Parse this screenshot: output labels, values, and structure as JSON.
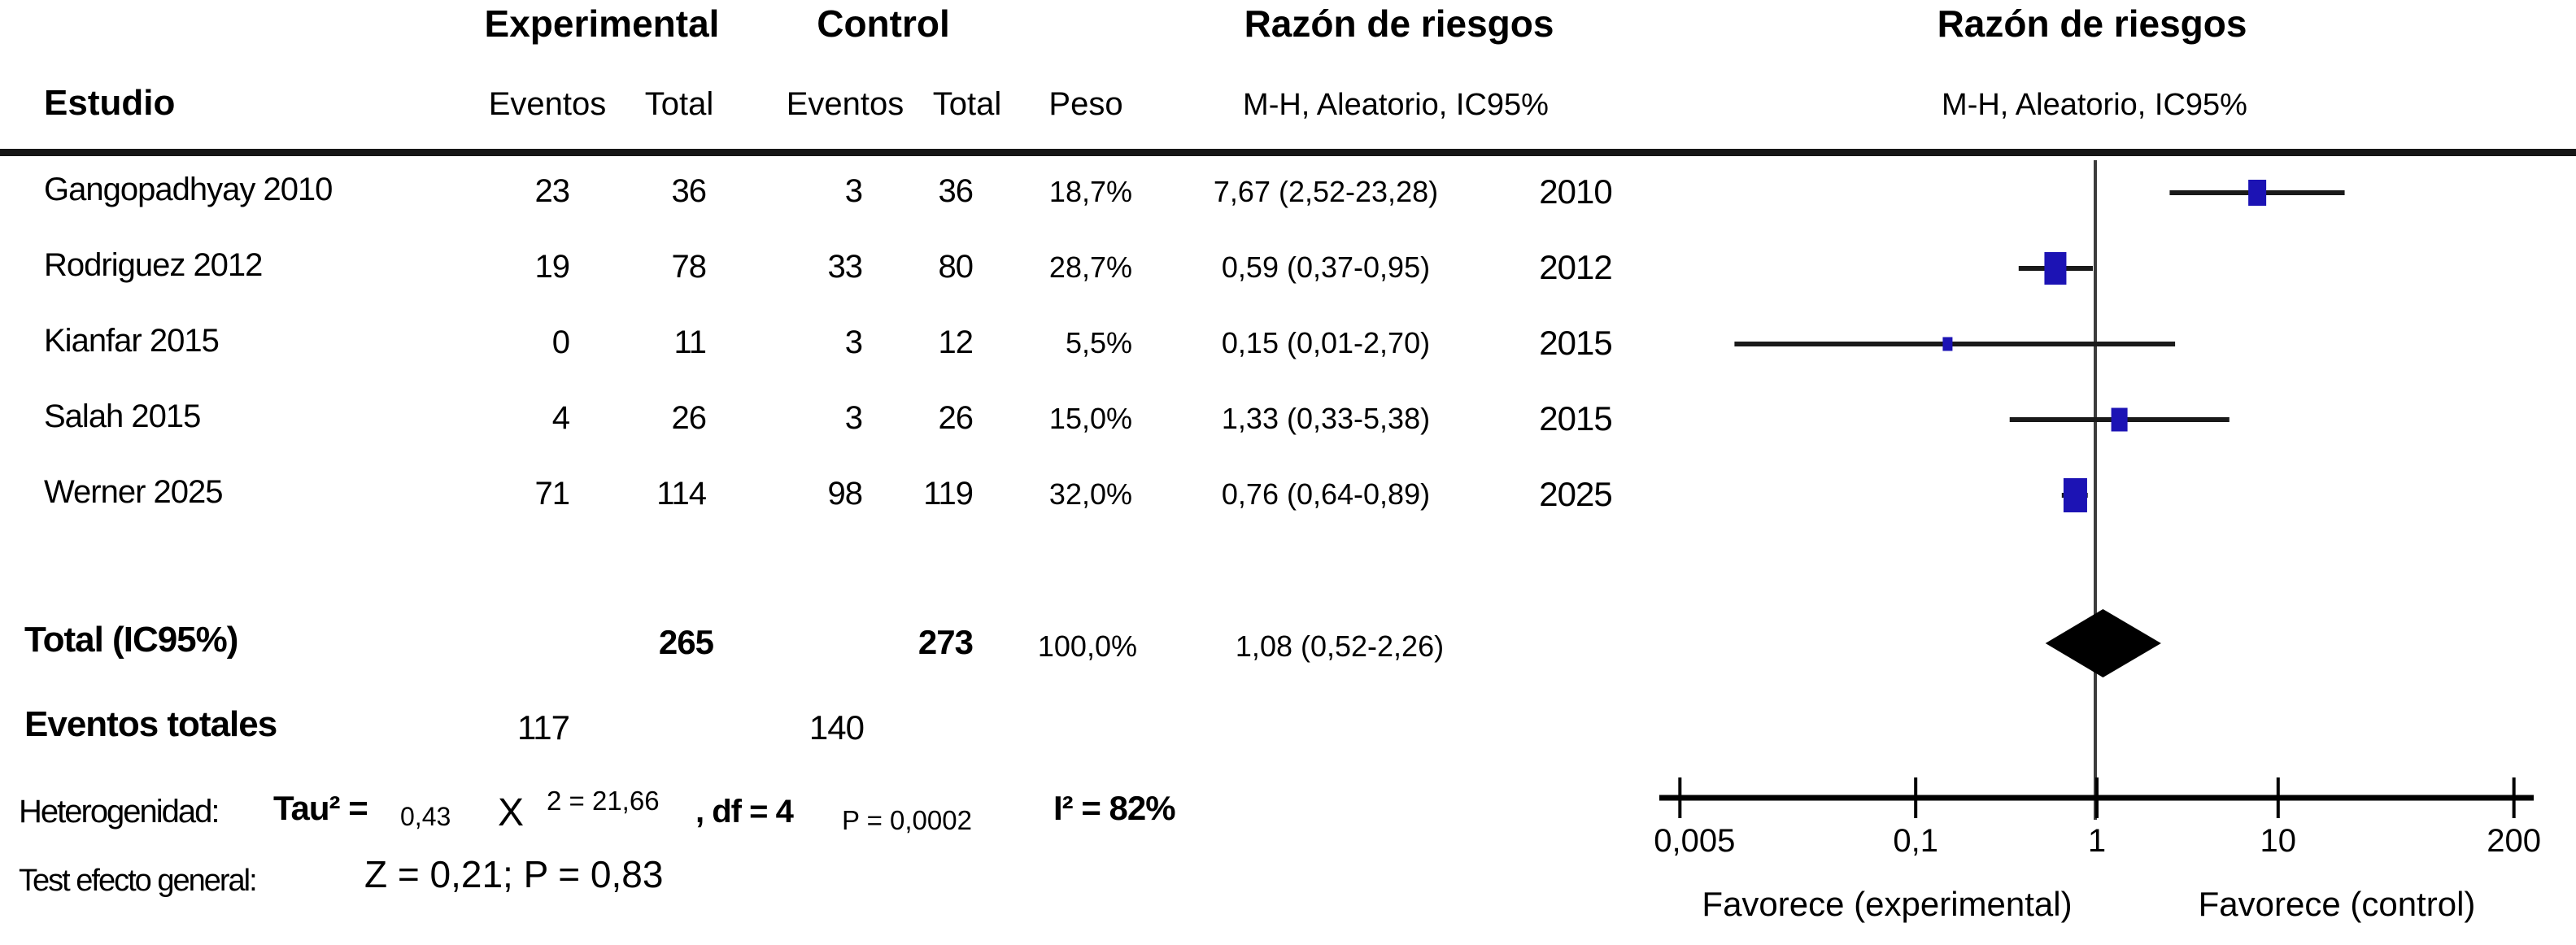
{
  "header": {
    "col_study": "Estudio",
    "col_experimental": "Experimental",
    "col_control": "Control",
    "col_events": "Eventos",
    "col_total": "Total",
    "col_weight": "Peso",
    "col_rr_text": "Razón de riesgos",
    "col_rr_plot": "Razón de riesgos",
    "sub_mh": "M-H, Aleatorio, IC95%"
  },
  "studies": [
    {
      "name": "Gangopadhyay 2010",
      "exp_events": "23",
      "exp_total": "36",
      "ctrl_events": "3",
      "ctrl_total": "36",
      "weight": "18,7%",
      "rr_ci": "7,67 (2,52-23,28)",
      "year": "2010"
    },
    {
      "name": "Rodriguez 2012",
      "exp_events": "19",
      "exp_total": "78",
      "ctrl_events": "33",
      "ctrl_total": "80",
      "weight": "28,7%",
      "rr_ci": "0,59 (0,37-0,95)",
      "year": "2012"
    },
    {
      "name": "Kianfar 2015",
      "exp_events": "0",
      "exp_total": "11",
      "ctrl_events": "3",
      "ctrl_total": "12",
      "weight": "5,5%",
      "rr_ci": "0,15 (0,01-2,70)",
      "year": "2015"
    },
    {
      "name": "Salah 2015",
      "exp_events": "4",
      "exp_total": "26",
      "ctrl_events": "3",
      "ctrl_total": "26",
      "weight": "15,0%",
      "rr_ci": "1,33 (0,33-5,38)",
      "year": "2015"
    },
    {
      "name": "Werner 2025",
      "exp_events": "71",
      "exp_total": "114",
      "ctrl_events": "98",
      "ctrl_total": "119",
      "weight": "32,0%",
      "rr_ci": "0,76 (0,64-0,89)",
      "year": "2025"
    }
  ],
  "totals": {
    "label": "Total (IC95%)",
    "exp_total": "265",
    "ctrl_total": "273",
    "weight": "100,0%",
    "rr_ci": "1,08 (0,52-2,26)",
    "events_label": "Eventos totales",
    "exp_events": "117",
    "ctrl_events": "140"
  },
  "heterogeneity": {
    "label": "Heterogenidad:",
    "tau": "Tau² =",
    "tau_val": "0,43",
    "chi_base": "X",
    "chi_sup": "2 = 21,66",
    "df": ", df = 4",
    "p": "P = 0,0002",
    "i2": "I² = 82%"
  },
  "overall": {
    "label": "Test efecto general:",
    "value": "Z = 0,21; P = 0,83"
  },
  "axis": {
    "tick_labels": [
      "0,005",
      "0,1",
      "1",
      "10",
      "200"
    ],
    "favor_left": "Favorece (experimental)",
    "favor_right": "Favorece (control)"
  },
  "colors": {
    "marker_blue": "#1c13b4",
    "ci_line": "#1a1a1a",
    "vline_gray": "#3c3c3c",
    "axis_black": "#000000",
    "diamond_black": "#000000"
  },
  "chart_data": {
    "type": "forest",
    "scale": "log10",
    "effect_measure": "Razón de riesgos (M-H, Aleatorio, IC95%)",
    "axis_ticks": [
      0.005,
      0.1,
      1,
      10,
      200
    ],
    "xlim": [
      0.005,
      200
    ],
    "null_line": 1,
    "studies": [
      {
        "name": "Gangopadhyay 2010",
        "rr": 7.67,
        "ci_low": 2.52,
        "ci_high": 23.28,
        "weight_pct": 18.7,
        "year": 2010
      },
      {
        "name": "Rodriguez 2012",
        "rr": 0.59,
        "ci_low": 0.37,
        "ci_high": 0.95,
        "weight_pct": 28.7,
        "year": 2012
      },
      {
        "name": "Kianfar 2015",
        "rr": 0.15,
        "ci_low": 0.01,
        "ci_high": 2.7,
        "weight_pct": 5.5,
        "year": 2015
      },
      {
        "name": "Salah 2015",
        "rr": 1.33,
        "ci_low": 0.33,
        "ci_high": 5.38,
        "weight_pct": 15.0,
        "year": 2015
      },
      {
        "name": "Werner 2025",
        "rr": 0.76,
        "ci_low": 0.64,
        "ci_high": 0.89,
        "weight_pct": 32.0,
        "year": 2025
      }
    ],
    "total": {
      "rr": 1.08,
      "ci_low": 0.52,
      "ci_high": 2.26,
      "weight_pct": 100.0
    }
  }
}
